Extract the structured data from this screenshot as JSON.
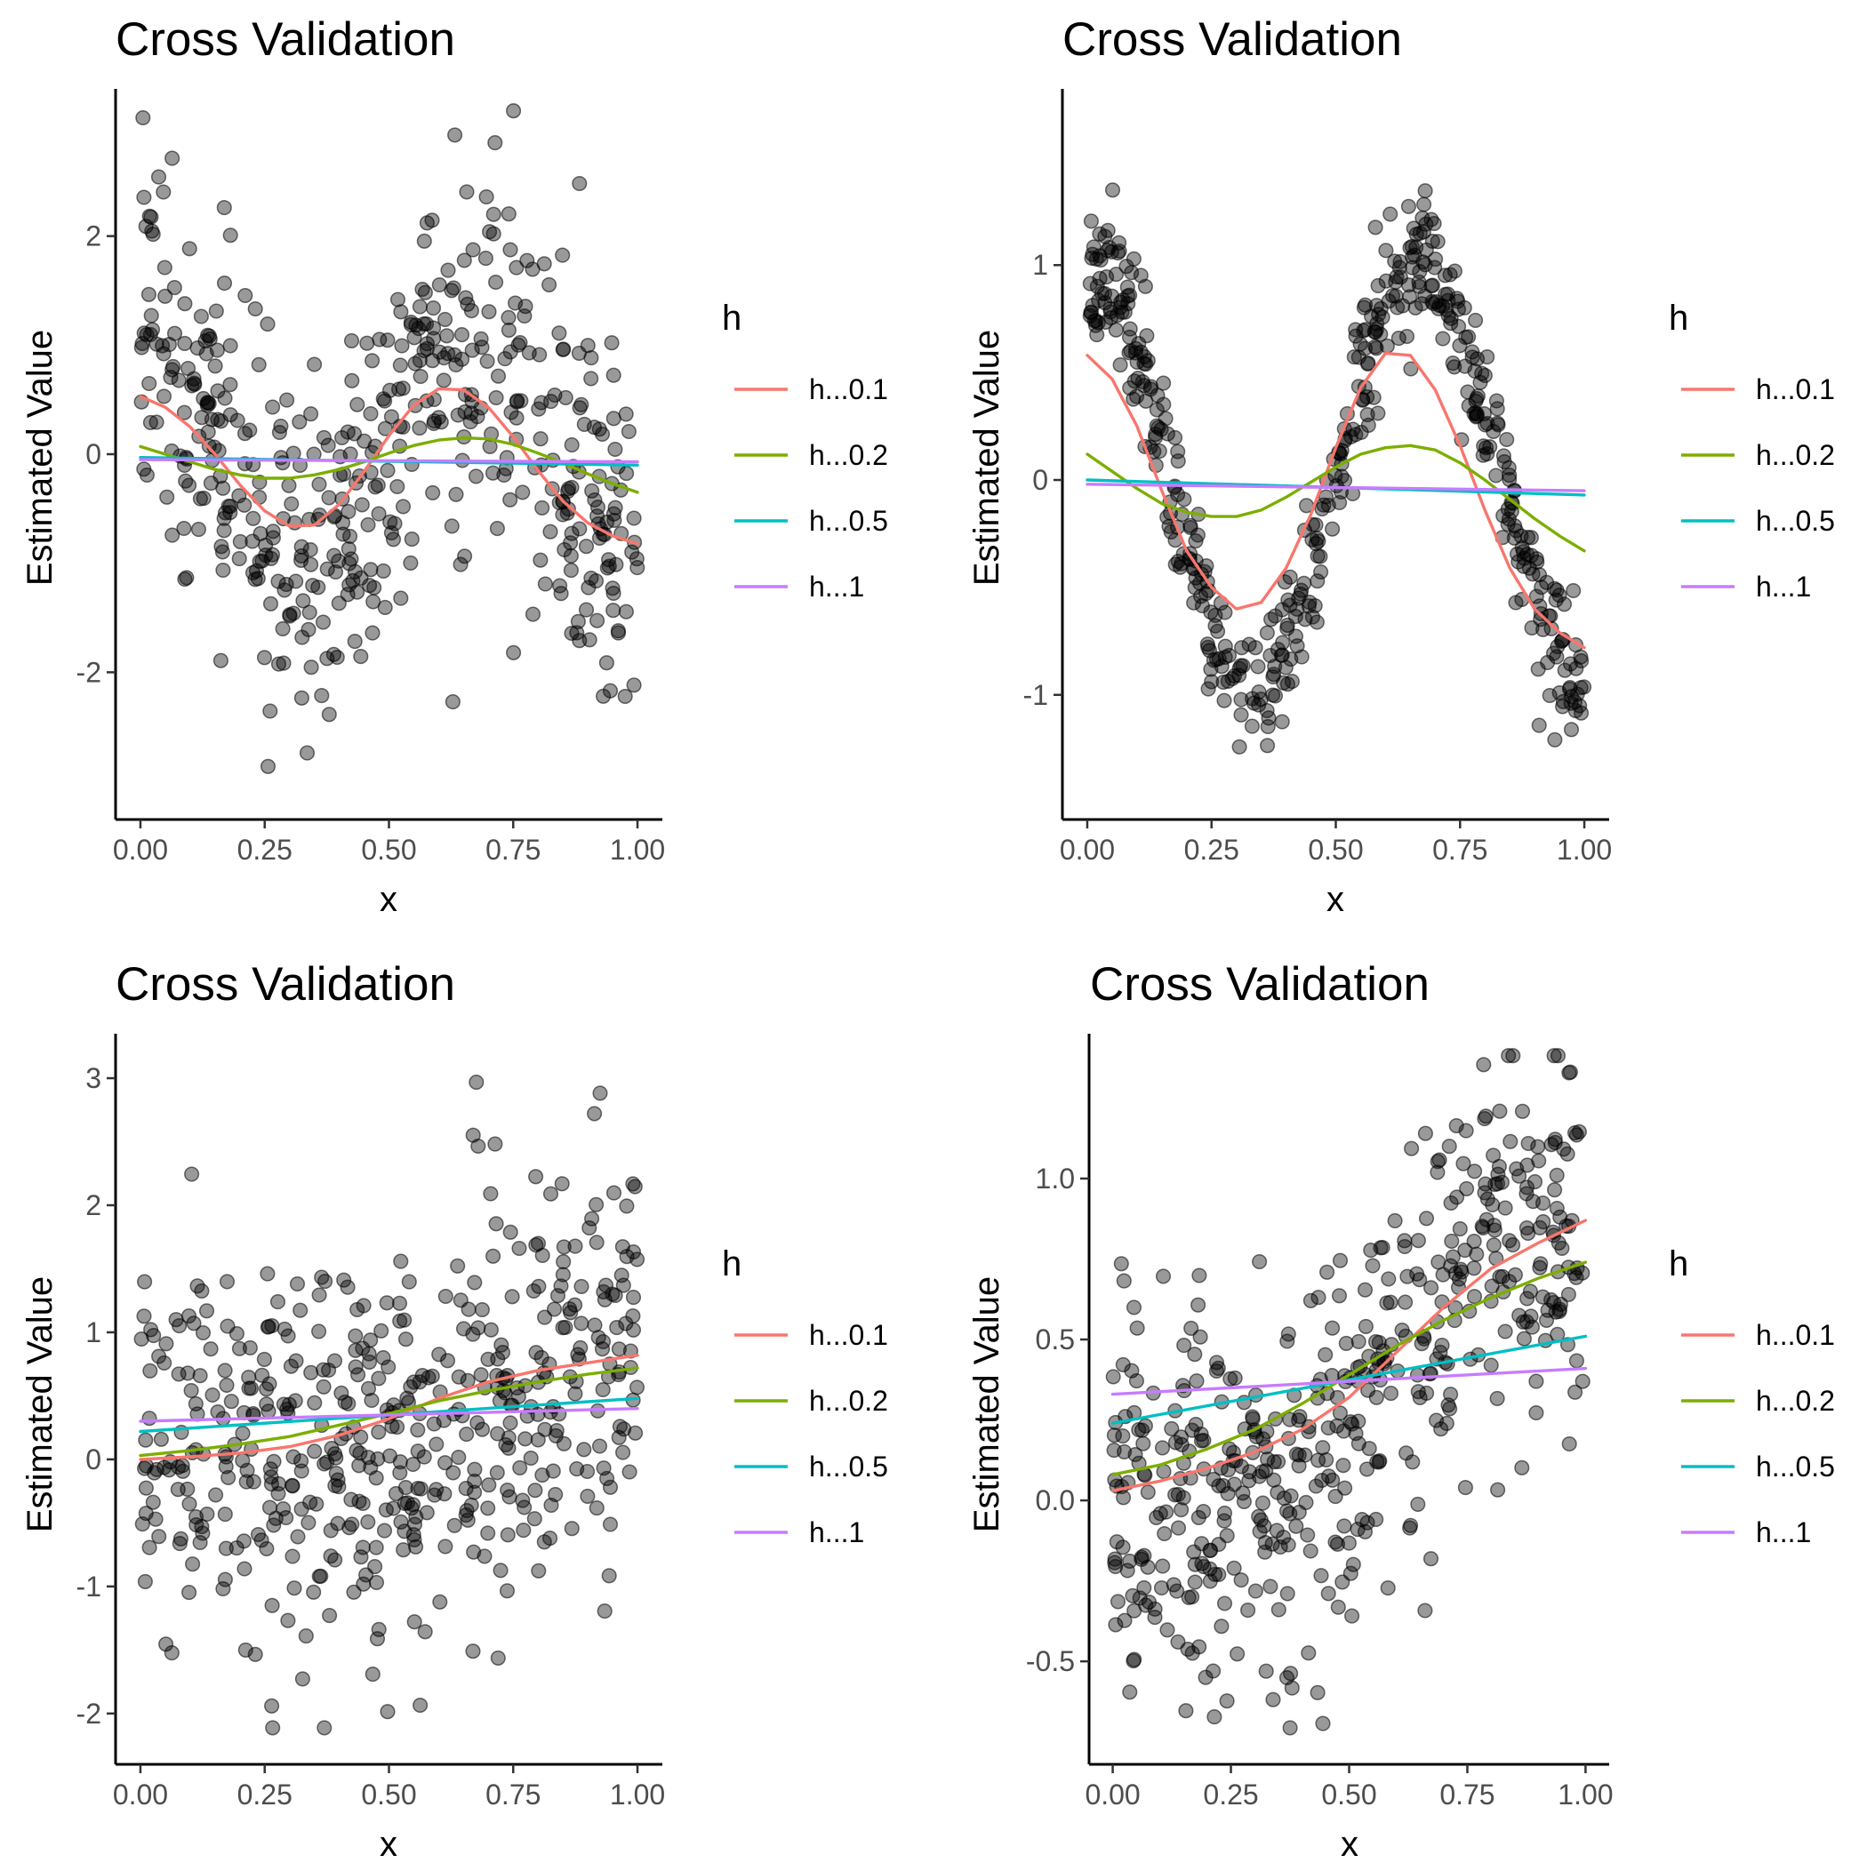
{
  "chart_data": [
    {
      "type": "scatter",
      "title": "Cross Validation",
      "xlabel": "x",
      "ylabel": "Estimated Value",
      "xlim": [
        -0.05,
        1.05
      ],
      "ylim": [
        -3.35,
        3.35
      ],
      "xticks": [
        0,
        0.25,
        0.5,
        0.75,
        1
      ],
      "xtick_labels": [
        "0.00",
        "0.25",
        "0.50",
        "0.75",
        "1.00"
      ],
      "yticks": [
        -2,
        0,
        2
      ],
      "ytick_labels": [
        "-2",
        "0",
        "2"
      ],
      "grid": false,
      "legend_position": "right",
      "legend": {
        "title": "h",
        "entries": [
          {
            "label": "h...0.1",
            "color": "#F8766D"
          },
          {
            "label": "h...0.2",
            "color": "#7CAE00"
          },
          {
            "label": "h...0.5",
            "color": "#00BFC4"
          },
          {
            "label": "h...1",
            "color": "#C77CFF"
          }
        ]
      },
      "scatter_points": {
        "count": 500,
        "generator": "sin",
        "amp": 1.0,
        "noise": 0.85,
        "seed": 11
      },
      "series": [
        {
          "x": [
            0,
            0.05,
            0.1,
            0.15,
            0.2,
            0.25,
            0.3,
            0.35,
            0.4,
            0.45,
            0.5,
            0.55,
            0.6,
            0.65,
            0.7,
            0.75,
            0.8,
            0.85,
            0.9,
            0.95,
            1.0
          ],
          "y": [
            0.53,
            0.43,
            0.25,
            0.0,
            -0.28,
            -0.52,
            -0.66,
            -0.65,
            -0.46,
            -0.16,
            0.17,
            0.45,
            0.6,
            0.59,
            0.43,
            0.16,
            -0.15,
            -0.43,
            -0.63,
            -0.75,
            -0.82
          ]
        },
        {
          "x": [
            0,
            0.05,
            0.1,
            0.15,
            0.2,
            0.25,
            0.3,
            0.35,
            0.4,
            0.45,
            0.5,
            0.55,
            0.6,
            0.65,
            0.7,
            0.75,
            0.8,
            0.85,
            0.9,
            0.95,
            1.0
          ],
          "y": [
            0.07,
            0.0,
            -0.07,
            -0.14,
            -0.19,
            -0.22,
            -0.22,
            -0.19,
            -0.14,
            -0.07,
            0.01,
            0.08,
            0.13,
            0.15,
            0.14,
            0.09,
            0.01,
            -0.08,
            -0.18,
            -0.27,
            -0.35
          ]
        },
        {
          "x": [
            0,
            1
          ],
          "y": [
            -0.03,
            -0.1
          ]
        },
        {
          "x": [
            0,
            1
          ],
          "y": [
            -0.05,
            -0.07
          ]
        }
      ]
    },
    {
      "type": "scatter",
      "title": "Cross Validation",
      "xlabel": "x",
      "ylabel": "Estimated Value",
      "xlim": [
        -0.05,
        1.05
      ],
      "ylim": [
        -1.58,
        1.82
      ],
      "xticks": [
        0,
        0.25,
        0.5,
        0.75,
        1
      ],
      "xtick_labels": [
        "0.00",
        "0.25",
        "0.50",
        "0.75",
        "1.00"
      ],
      "yticks": [
        -1,
        0,
        1
      ],
      "ytick_labels": [
        "-1",
        "0",
        "1"
      ],
      "grid": false,
      "legend_position": "right",
      "legend": {
        "title": "h",
        "entries": [
          {
            "label": "h...0.1",
            "color": "#F8766D"
          },
          {
            "label": "h...0.2",
            "color": "#7CAE00"
          },
          {
            "label": "h...0.5",
            "color": "#00BFC4"
          },
          {
            "label": "h...1",
            "color": "#C77CFF"
          }
        ]
      },
      "scatter_points": {
        "count": 500,
        "generator": "sin",
        "amp": 1.0,
        "noise": 0.17,
        "seed": 23
      },
      "series": [
        {
          "x": [
            0,
            0.05,
            0.1,
            0.15,
            0.2,
            0.25,
            0.3,
            0.35,
            0.4,
            0.45,
            0.5,
            0.55,
            0.6,
            0.65,
            0.7,
            0.75,
            0.8,
            0.85,
            0.9,
            0.95,
            1.0
          ],
          "y": [
            0.58,
            0.47,
            0.25,
            -0.05,
            -0.33,
            -0.5,
            -0.6,
            -0.57,
            -0.41,
            -0.16,
            0.15,
            0.43,
            0.59,
            0.58,
            0.42,
            0.16,
            -0.14,
            -0.41,
            -0.6,
            -0.71,
            -0.78
          ]
        },
        {
          "x": [
            0,
            0.05,
            0.1,
            0.15,
            0.2,
            0.25,
            0.3,
            0.35,
            0.4,
            0.45,
            0.5,
            0.55,
            0.6,
            0.65,
            0.7,
            0.75,
            0.8,
            0.85,
            0.9,
            0.95,
            1.0
          ],
          "y": [
            0.12,
            0.04,
            -0.04,
            -0.11,
            -0.15,
            -0.17,
            -0.17,
            -0.14,
            -0.08,
            -0.01,
            0.06,
            0.12,
            0.15,
            0.16,
            0.14,
            0.08,
            0.0,
            -0.09,
            -0.18,
            -0.26,
            -0.33
          ]
        },
        {
          "x": [
            0,
            1
          ],
          "y": [
            0.0,
            -0.07
          ]
        },
        {
          "x": [
            0,
            1
          ],
          "y": [
            -0.02,
            -0.05
          ]
        }
      ]
    },
    {
      "type": "scatter",
      "title": "Cross Validation",
      "xlabel": "x",
      "ylabel": "Estimated Value",
      "xlim": [
        -0.05,
        1.05
      ],
      "ylim": [
        -2.4,
        3.35
      ],
      "xticks": [
        0,
        0.25,
        0.5,
        0.75,
        1
      ],
      "xtick_labels": [
        "0.00",
        "0.25",
        "0.50",
        "0.75",
        "1.00"
      ],
      "yticks": [
        -2,
        -1,
        0,
        1,
        2,
        3
      ],
      "ytick_labels": [
        "-2",
        "-1",
        "0",
        "1",
        "2",
        "3"
      ],
      "grid": false,
      "legend_position": "right",
      "legend": {
        "title": "h",
        "entries": [
          {
            "label": "h...0.1",
            "color": "#F8766D"
          },
          {
            "label": "h...0.2",
            "color": "#7CAE00"
          },
          {
            "label": "h...0.5",
            "color": "#00BFC4"
          },
          {
            "label": "h...1",
            "color": "#C77CFF"
          }
        ]
      },
      "scatter_points": {
        "count": 500,
        "generator": "logistic",
        "low": 0.0,
        "high": 0.8,
        "noise": 0.8,
        "seed": 37
      },
      "series": [
        {
          "x": [
            0,
            0.1,
            0.2,
            0.3,
            0.4,
            0.5,
            0.6,
            0.7,
            0.8,
            0.9,
            1.0
          ],
          "y": [
            0.0,
            0.02,
            0.05,
            0.1,
            0.19,
            0.32,
            0.48,
            0.61,
            0.7,
            0.76,
            0.82
          ]
        },
        {
          "x": [
            0,
            0.1,
            0.2,
            0.3,
            0.4,
            0.5,
            0.6,
            0.7,
            0.8,
            0.9,
            1.0
          ],
          "y": [
            0.03,
            0.07,
            0.12,
            0.18,
            0.27,
            0.36,
            0.46,
            0.54,
            0.61,
            0.67,
            0.72
          ]
        },
        {
          "x": [
            0,
            1
          ],
          "y": [
            0.22,
            0.48
          ]
        },
        {
          "x": [
            0,
            1
          ],
          "y": [
            0.3,
            0.4
          ]
        }
      ]
    },
    {
      "type": "scatter",
      "title": "Cross Validation",
      "xlabel": "x",
      "ylabel": "Estimated Value",
      "xlim": [
        -0.05,
        1.05
      ],
      "ylim": [
        -0.82,
        1.45
      ],
      "xticks": [
        0,
        0.25,
        0.5,
        0.75,
        1
      ],
      "xtick_labels": [
        "0.00",
        "0.25",
        "0.50",
        "0.75",
        "1.00"
      ],
      "yticks": [
        -0.5,
        0,
        0.5,
        1
      ],
      "ytick_labels": [
        "-0.5",
        "0.0",
        "0.5",
        "1.0"
      ],
      "grid": false,
      "legend_position": "right",
      "legend": {
        "title": "h",
        "entries": [
          {
            "label": "h...0.1",
            "color": "#F8766D"
          },
          {
            "label": "h...0.2",
            "color": "#7CAE00"
          },
          {
            "label": "h...0.5",
            "color": "#00BFC4"
          },
          {
            "label": "h...1",
            "color": "#C77CFF"
          }
        ]
      },
      "scatter_points": {
        "count": 500,
        "generator": "logistic",
        "low": 0.0,
        "high": 0.85,
        "noise": 0.3,
        "seed": 53
      },
      "series": [
        {
          "x": [
            0,
            0.1,
            0.2,
            0.3,
            0.4,
            0.5,
            0.6,
            0.7,
            0.8,
            0.9,
            1.0
          ],
          "y": [
            0.03,
            0.06,
            0.1,
            0.15,
            0.22,
            0.32,
            0.46,
            0.6,
            0.72,
            0.8,
            0.87
          ]
        },
        {
          "x": [
            0,
            0.1,
            0.2,
            0.3,
            0.4,
            0.5,
            0.6,
            0.7,
            0.8,
            0.9,
            1.0
          ],
          "y": [
            0.08,
            0.11,
            0.16,
            0.22,
            0.3,
            0.39,
            0.48,
            0.56,
            0.63,
            0.69,
            0.74
          ]
        },
        {
          "x": [
            0,
            1
          ],
          "y": [
            0.24,
            0.51
          ]
        },
        {
          "x": [
            0,
            1
          ],
          "y": [
            0.33,
            0.41
          ]
        }
      ]
    }
  ]
}
